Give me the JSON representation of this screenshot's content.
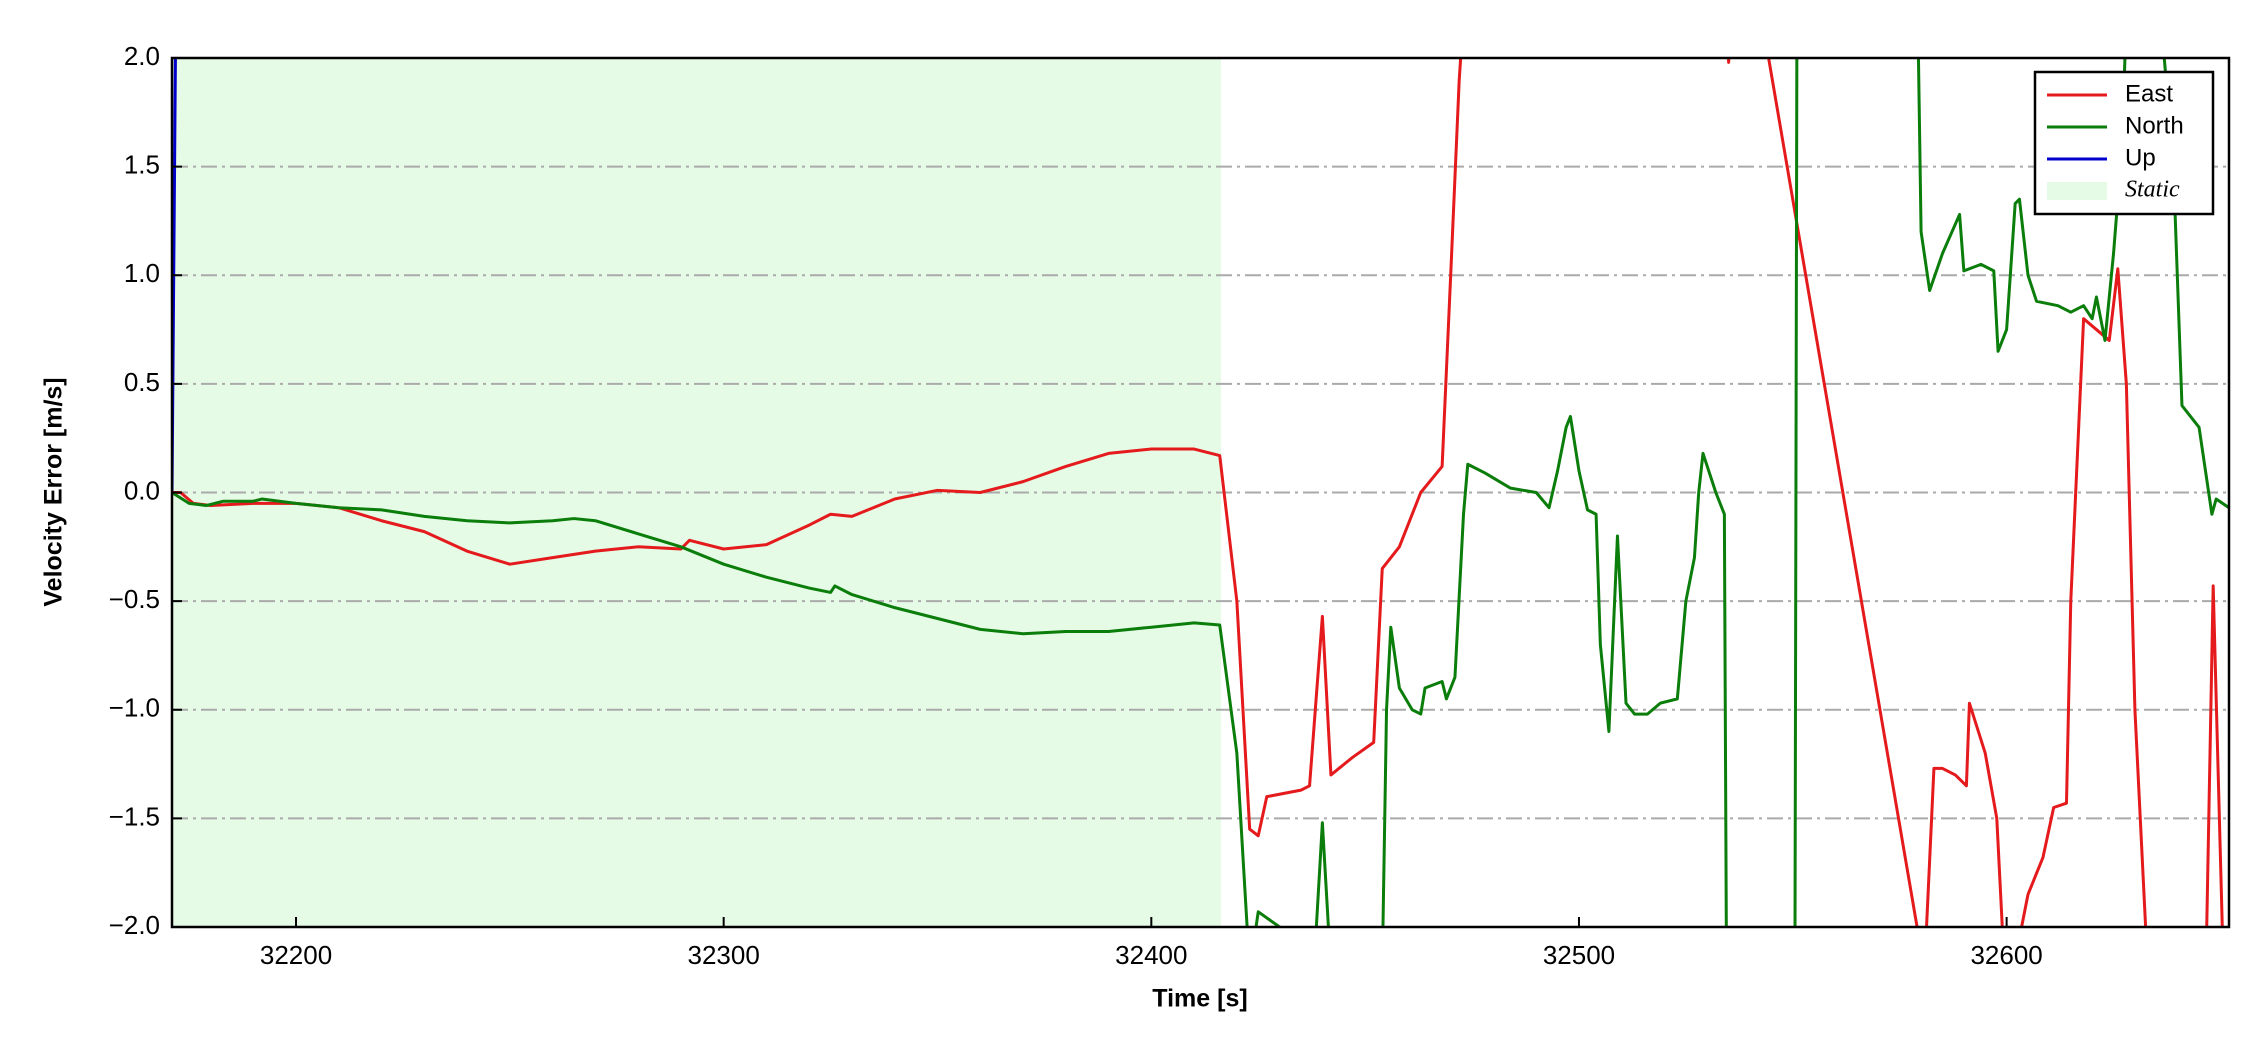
{
  "chart_data": {
    "type": "line",
    "xlabel": "Time [s]",
    "ylabel": "Velocity Error [m/s]",
    "xlim": [
      32171,
      32652
    ],
    "xticks": [
      32200,
      32300,
      32400,
      32500,
      32600
    ],
    "ylim": [
      -2.0,
      2.0
    ],
    "yticks": [
      {
        "value": -2.0,
        "label": "−2.0"
      },
      {
        "value": -1.5,
        "label": "−1.5"
      },
      {
        "value": -1.0,
        "label": "−1.0"
      },
      {
        "value": -0.5,
        "label": "−0.5"
      },
      {
        "value": 0.0,
        "label": "0.0"
      },
      {
        "value": 0.5,
        "label": "0.5"
      },
      {
        "value": 1.0,
        "label": "1.0"
      },
      {
        "value": 1.5,
        "label": "1.5"
      },
      {
        "value": 2.0,
        "label": "2.0"
      }
    ],
    "grid": true,
    "legend": "upper right",
    "shade": {
      "label": "Static",
      "xlim": [
        32171,
        32416.3
      ],
      "color": "#e6fbe6"
    },
    "series": [
      {
        "name": "East",
        "color": "#e41a1c",
        "x": [
          32171,
          32173,
          32176,
          32180,
          32190,
          32200,
          32210,
          32220,
          32230,
          32240,
          32250,
          32260,
          32270,
          32280,
          32290,
          32292,
          32300,
          32310,
          32320,
          32325,
          32330,
          32340,
          32350,
          32360,
          32370,
          32380,
          32390,
          32400,
          32410,
          32416,
          32420,
          32423,
          32425,
          32427,
          32435,
          32437,
          32440,
          32442,
          32447,
          32452,
          32454,
          32458,
          32463,
          32468,
          32470,
          32472,
          32474,
          32534,
          32535,
          32536,
          32540,
          32580.8,
          32583,
          32585,
          32588,
          32590.6,
          32591.3,
          32595,
          32597.7,
          32599.5,
          32602.5,
          32605,
          32608.5,
          32611,
          32614,
          32615,
          32618,
          32624,
          32626,
          32628,
          32630,
          32633,
          32646.6,
          32648.3,
          32650.7
        ],
        "values": [
          0.0,
          0.0,
          -0.05,
          -0.06,
          -0.05,
          -0.05,
          -0.07,
          -0.13,
          -0.18,
          -0.27,
          -0.33,
          -0.3,
          -0.27,
          -0.25,
          -0.26,
          -0.22,
          -0.26,
          -0.24,
          -0.15,
          -0.1,
          -0.11,
          -0.03,
          0.01,
          0.0,
          0.05,
          0.12,
          0.18,
          0.2,
          0.2,
          0.17,
          -0.5,
          -1.55,
          -1.58,
          -1.4,
          -1.37,
          -1.35,
          -0.57,
          -1.3,
          -1.22,
          -1.15,
          -0.35,
          -0.25,
          0.0,
          0.12,
          1.0,
          1.9,
          2.5,
          2.5,
          1.98,
          2.5,
          2.5,
          -2.2,
          -1.27,
          -1.27,
          -1.3,
          -1.35,
          -0.97,
          -1.2,
          -1.5,
          -2.2,
          -2.1,
          -1.85,
          -1.68,
          -1.45,
          -1.43,
          -0.5,
          0.8,
          0.7,
          1.03,
          0.5,
          -1.0,
          -2.2,
          -2.2,
          -0.43,
          -2.2
        ]
      },
      {
        "name": "North",
        "color": "#0a7d0a",
        "x": [
          32171,
          32175,
          32179,
          32183,
          32190,
          32192,
          32200,
          32210,
          32220,
          32230,
          32240,
          32250,
          32260,
          32265,
          32270,
          32280,
          32290,
          32300,
          32310,
          32320,
          32325,
          32326,
          32330,
          32340,
          32350,
          32360,
          32370,
          32380,
          32390,
          32400,
          32410,
          32416,
          32420,
          32423,
          32425,
          32430,
          32432,
          32438,
          32440,
          32442,
          32454,
          32455,
          32456,
          32458,
          32461,
          32463,
          32464,
          32468,
          32469,
          32471,
          32473,
          32474,
          32478,
          32484,
          32490,
          32493,
          32495,
          32497,
          32498,
          32500,
          32502,
          32504,
          32505,
          32507,
          32509,
          32511,
          32513,
          32516,
          32519,
          32523,
          32525,
          32527,
          32528,
          32529,
          32532,
          32534,
          32534.5,
          32550.5,
          32551,
          32579,
          32580,
          32582,
          32585,
          32589,
          32590,
          32594,
          32597,
          32598,
          32600,
          32602,
          32603,
          32605,
          32607,
          32612,
          32615,
          32618,
          32620,
          32621,
          32623,
          32625,
          32627,
          32628,
          32636,
          32639,
          32641,
          32645,
          32648,
          32649,
          32652
        ],
        "values": [
          0.0,
          -0.05,
          -0.06,
          -0.04,
          -0.04,
          -0.03,
          -0.05,
          -0.07,
          -0.08,
          -0.11,
          -0.13,
          -0.14,
          -0.13,
          -0.12,
          -0.13,
          -0.19,
          -0.25,
          -0.33,
          -0.39,
          -0.44,
          -0.46,
          -0.43,
          -0.47,
          -0.53,
          -0.58,
          -0.63,
          -0.65,
          -0.64,
          -0.64,
          -0.62,
          -0.6,
          -0.61,
          -1.2,
          -2.2,
          -1.93,
          -2.0,
          -2.2,
          -2.2,
          -1.52,
          -2.2,
          -2.2,
          -1.0,
          -0.62,
          -0.9,
          -1.0,
          -1.02,
          -0.9,
          -0.87,
          -0.95,
          -0.85,
          -0.1,
          0.13,
          0.09,
          0.02,
          0.0,
          -0.07,
          0.1,
          0.3,
          0.35,
          0.1,
          -0.08,
          -0.1,
          -0.7,
          -1.1,
          -0.2,
          -0.97,
          -1.02,
          -1.02,
          -0.97,
          -0.95,
          -0.5,
          -0.3,
          0.0,
          0.18,
          0.0,
          -0.1,
          -2.2,
          -2.2,
          2.5,
          2.5,
          1.2,
          0.93,
          1.1,
          1.28,
          1.02,
          1.05,
          1.02,
          0.65,
          0.75,
          1.33,
          1.35,
          1.0,
          0.88,
          0.86,
          0.83,
          0.86,
          0.8,
          0.9,
          0.7,
          1.1,
          1.6,
          2.2,
          2.2,
          1.5,
          0.4,
          0.3,
          -0.1,
          -0.03,
          -0.07
        ]
      },
      {
        "name": "Up",
        "color": "#0000cc",
        "x": [
          32171,
          32172
        ],
        "values": [
          0.0,
          2.5
        ]
      }
    ]
  }
}
